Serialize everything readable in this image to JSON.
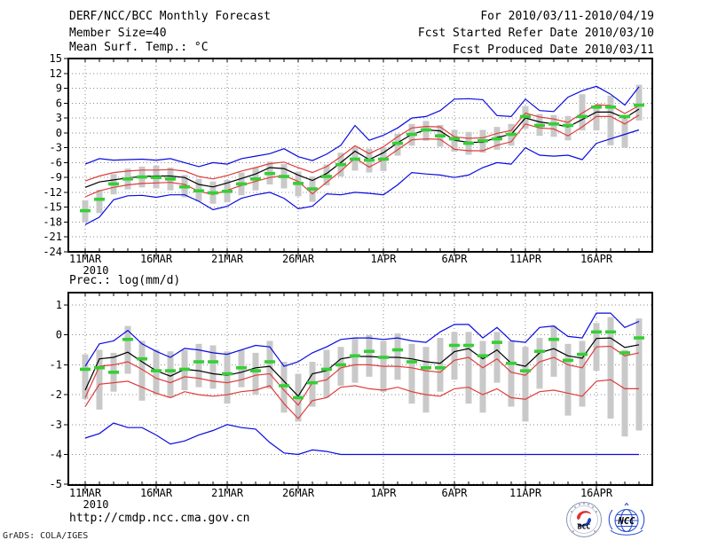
{
  "header": {
    "left_lines": [
      "DERF/NCC/BCC Monthly Forecast",
      "Member Size=40"
    ],
    "right_lines": [
      "For 2010/03/11-2010/04/19",
      "Fcst Started Refer Date 2010/03/10",
      "Fcst Produced Date 2010/03/11"
    ]
  },
  "footer": {
    "url": "http://cmdp.ncc.cma.gov.cn",
    "credit": "GrADS: COLA/IGES"
  },
  "logos": {
    "bcc_text": "BCC",
    "ncc_text": "NCC"
  },
  "colors": {
    "line_blue": "#0a0ae0",
    "line_red": "#e03c3c",
    "line_black": "#000000",
    "dash_green": "#35cf35",
    "bar_gray": "#c9c9c9",
    "grid_gray": "#8a8a8a",
    "frame": "#000000"
  },
  "chart_data": [
    {
      "type": "line",
      "title": "Mean Surf. Temp.: °C",
      "ylim": [
        -24,
        15
      ],
      "ytick_labels": [
        "15",
        "12",
        "9",
        "6",
        "3",
        "0",
        "-3",
        "-6",
        "-9",
        "-12",
        "-15",
        "-18",
        "-21",
        "-24"
      ],
      "x_start_date": "2010/03/11",
      "x_days": 40,
      "year_label": "2010",
      "xtick_labels": [
        {
          "day": 1,
          "label": "11MAR"
        },
        {
          "day": 6,
          "label": "16MAR"
        },
        {
          "day": 11,
          "label": "21MAR"
        },
        {
          "day": 16,
          "label": "26MAR"
        },
        {
          "day": 22,
          "label": "1APR"
        },
        {
          "day": 27,
          "label": "6APR"
        },
        {
          "day": 32,
          "label": "11APR"
        },
        {
          "day": 37,
          "label": "16APR"
        }
      ],
      "grid": "dotted",
      "series": [
        {
          "name": "ensemble-max",
          "color_key": "line_blue",
          "values": [
            -6.3,
            -5.2,
            -5.5,
            -5.4,
            -5.3,
            -5.5,
            -5.2,
            -6.0,
            -6.8,
            -6.0,
            -6.3,
            -5.2,
            -4.7,
            -4.2,
            -3.2,
            -4.8,
            -5.6,
            -4.3,
            -2.5,
            1.5,
            -1.5,
            -0.5,
            1.0,
            3.0,
            3.3,
            4.5,
            6.8,
            6.9,
            6.7,
            3.5,
            3.3,
            6.8,
            4.5,
            4.3,
            7.2,
            8.5,
            9.4,
            7.8,
            5.6,
            9.3
          ]
        },
        {
          "name": "ensemble-upper",
          "color_key": "line_red",
          "values": [
            -9.7,
            -8.7,
            -8.0,
            -7.7,
            -7.5,
            -7.5,
            -7.4,
            -7.7,
            -8.8,
            -9.3,
            -8.6,
            -7.7,
            -7.0,
            -6.2,
            -5.9,
            -7.0,
            -8.0,
            -6.8,
            -4.8,
            -2.6,
            -4.2,
            -2.8,
            -0.8,
            1.0,
            1.3,
            1.2,
            -0.8,
            -1.1,
            -1.0,
            -0.1,
            0.5,
            4.0,
            3.2,
            2.8,
            2.1,
            4.0,
            5.7,
            5.5,
            3.9,
            5.5
          ]
        },
        {
          "name": "ensemble-mean",
          "color_key": "line_black",
          "values": [
            -11.0,
            -9.9,
            -9.5,
            -9.1,
            -8.8,
            -8.7,
            -8.7,
            -9.0,
            -10.4,
            -10.9,
            -10.1,
            -9.2,
            -8.3,
            -7.0,
            -7.2,
            -8.5,
            -9.6,
            -8.2,
            -6.0,
            -3.7,
            -5.4,
            -4.0,
            -2.0,
            -0.3,
            0.6,
            0.4,
            -1.5,
            -1.9,
            -1.9,
            -0.9,
            -0.3,
            3.0,
            2.2,
            1.8,
            1.2,
            2.7,
            4.2,
            4.2,
            3.0,
            4.8
          ]
        },
        {
          "name": "ensemble-lower",
          "color_key": "line_red",
          "values": [
            -12.9,
            -11.7,
            -11.0,
            -10.5,
            -10.2,
            -10.1,
            -10.0,
            -10.4,
            -11.8,
            -12.4,
            -11.6,
            -10.6,
            -9.8,
            -9.0,
            -8.6,
            -9.8,
            -12.3,
            -10.0,
            -7.7,
            -5.1,
            -6.9,
            -5.4,
            -3.4,
            -1.4,
            -1.2,
            -1.3,
            -3.3,
            -3.6,
            -3.6,
            -2.5,
            -1.8,
            1.8,
            1.0,
            0.8,
            -0.6,
            1.2,
            3.3,
            3.3,
            1.8,
            3.6
          ]
        },
        {
          "name": "ensemble-min",
          "color_key": "line_blue",
          "values": [
            -18.5,
            -17.0,
            -13.5,
            -12.7,
            -12.6,
            -13.0,
            -12.5,
            -12.5,
            -13.8,
            -15.5,
            -14.8,
            -13.2,
            -12.5,
            -12.0,
            -13.2,
            -15.3,
            -14.8,
            -12.3,
            -12.5,
            -12.0,
            -12.2,
            -12.5,
            -10.5,
            -8.0,
            -8.3,
            -8.5,
            -9.0,
            -8.5,
            -7.0,
            -6.0,
            -6.3,
            -3.0,
            -4.5,
            -4.7,
            -4.5,
            -5.4,
            -2.1,
            -1.2,
            -0.3,
            0.6
          ]
        }
      ],
      "dashes": {
        "name": "observation-dash",
        "color_key": "dash_green",
        "values": [
          -15.7,
          -13.4,
          -10.3,
          -9.3,
          -8.9,
          -9.0,
          -9.3,
          -10.9,
          -11.7,
          -12.1,
          -11.8,
          -10.3,
          -9.3,
          -8.2,
          -8.8,
          -10.2,
          -11.3,
          -8.8,
          -6.4,
          -5.3,
          -5.5,
          -5.3,
          -2.1,
          -0.3,
          0.6,
          -0.6,
          -1.2,
          -2.1,
          -1.6,
          -1.2,
          -0.3,
          3.3,
          1.5,
          1.8,
          1.5,
          3.3,
          5.2,
          5.2,
          3.3,
          5.6
        ]
      },
      "bars": {
        "name": "ensemble-spread-bar",
        "color_key": "bar_gray",
        "top": [
          -13.6,
          -11.5,
          -8.3,
          -7.2,
          -6.8,
          -6.6,
          -7.0,
          -8.5,
          -9.3,
          -9.8,
          -9.5,
          -8.0,
          -7.0,
          -5.8,
          -6.3,
          -7.8,
          -8.8,
          -6.4,
          -4.0,
          -2.8,
          -3.2,
          -2.9,
          -0.2,
          1.8,
          2.4,
          1.6,
          0.6,
          0.2,
          0.6,
          1.2,
          1.8,
          5.4,
          3.8,
          3.6,
          3.4,
          7.8,
          5.4,
          7.5,
          3.5,
          9.7
        ],
        "bottom": [
          -17.9,
          -16.2,
          -12.4,
          -11.4,
          -11.0,
          -11.2,
          -11.6,
          -13.0,
          -13.8,
          -14.3,
          -14.0,
          -12.6,
          -11.6,
          -10.4,
          -11.2,
          -12.8,
          -13.9,
          -10.6,
          -8.8,
          -7.6,
          -8.0,
          -7.7,
          -4.6,
          -2.6,
          -1.6,
          -2.8,
          -3.8,
          -4.4,
          -4.0,
          -3.4,
          -2.6,
          0.8,
          -0.6,
          -0.8,
          -1.5,
          0.5,
          0.5,
          -2.5,
          -3.0,
          2.5
        ]
      }
    },
    {
      "type": "line",
      "title": "Prec.: log(mm/d)",
      "ylim": [
        -5,
        1
      ],
      "ytick_labels": [
        "1",
        "0",
        "-1",
        "-2",
        "-3",
        "-4",
        "-5"
      ],
      "x_start_date": "2010/03/11",
      "x_days": 40,
      "year_label": "2010",
      "xtick_labels": [
        {
          "day": 1,
          "label": "11MAR"
        },
        {
          "day": 6,
          "label": "16MAR"
        },
        {
          "day": 11,
          "label": "21MAR"
        },
        {
          "day": 16,
          "label": "26MAR"
        },
        {
          "day": 22,
          "label": "1APR"
        },
        {
          "day": 27,
          "label": "6APR"
        },
        {
          "day": 32,
          "label": "11APR"
        },
        {
          "day": 37,
          "label": "16APR"
        }
      ],
      "grid": "dotted",
      "series": [
        {
          "name": "ensemble-max",
          "color_key": "line_blue",
          "values": [
            -1.05,
            -0.3,
            -0.2,
            0.15,
            -0.3,
            -0.55,
            -0.75,
            -0.45,
            -0.5,
            -0.6,
            -0.65,
            -0.5,
            -0.35,
            -0.4,
            -1.05,
            -0.9,
            -0.6,
            -0.4,
            -0.15,
            -0.1,
            -0.1,
            -0.15,
            -0.1,
            -0.2,
            -0.25,
            0.1,
            0.35,
            0.35,
            -0.1,
            0.25,
            -0.2,
            -0.25,
            0.25,
            0.3,
            -0.05,
            -0.1,
            0.73,
            0.73,
            0.25,
            0.45
          ]
        },
        {
          "name": "ensemble-mean",
          "color_key": "line_black",
          "values": [
            -1.85,
            -0.8,
            -0.75,
            -0.58,
            -0.9,
            -1.2,
            -1.38,
            -1.15,
            -1.2,
            -1.3,
            -1.35,
            -1.25,
            -1.1,
            -1.05,
            -1.55,
            -2.05,
            -1.3,
            -1.2,
            -0.8,
            -0.72,
            -0.72,
            -0.75,
            -0.75,
            -0.8,
            -0.9,
            -0.95,
            -0.56,
            -0.46,
            -0.8,
            -0.5,
            -0.95,
            -1.05,
            -0.6,
            -0.46,
            -0.7,
            -0.78,
            -0.12,
            -0.1,
            -0.42,
            -0.33
          ]
        },
        {
          "name": "ensemble-upper",
          "color_key": "line_red",
          "values": [
            -2.1,
            -1.05,
            -1.0,
            -0.9,
            -1.15,
            -1.45,
            -1.6,
            -1.4,
            -1.45,
            -1.55,
            -1.6,
            -1.5,
            -1.35,
            -1.3,
            -1.85,
            -2.35,
            -1.6,
            -1.5,
            -1.1,
            -1.0,
            -1.0,
            -1.05,
            -1.05,
            -1.1,
            -1.2,
            -1.25,
            -0.85,
            -0.75,
            -1.1,
            -0.8,
            -1.25,
            -1.35,
            -0.9,
            -0.75,
            -1.0,
            -1.1,
            -0.4,
            -0.38,
            -0.7,
            -0.6
          ]
        },
        {
          "name": "ensemble-lower",
          "color_key": "line_red",
          "values": [
            -2.4,
            -1.65,
            -1.6,
            -1.55,
            -1.75,
            -1.95,
            -2.1,
            -1.9,
            -2.0,
            -2.05,
            -2.0,
            -1.9,
            -1.85,
            -1.7,
            -2.3,
            -2.8,
            -2.2,
            -2.1,
            -1.75,
            -1.7,
            -1.8,
            -1.85,
            -1.75,
            -1.9,
            -2.0,
            -2.05,
            -1.8,
            -1.75,
            -2.0,
            -1.8,
            -2.1,
            -2.15,
            -1.9,
            -1.85,
            -1.95,
            -2.05,
            -1.55,
            -1.5,
            -1.8,
            -1.8
          ]
        },
        {
          "name": "ensemble-min",
          "color_key": "line_blue",
          "values": [
            -3.45,
            -3.3,
            -2.95,
            -3.1,
            -3.1,
            -3.35,
            -3.65,
            -3.55,
            -3.35,
            -3.2,
            -3.0,
            -3.1,
            -3.15,
            -3.6,
            -3.95,
            -4.0,
            -3.85,
            -3.9,
            -4.0,
            -4.0,
            -4.0,
            -4.0,
            -4.0,
            -4.0,
            -4.0,
            -4.0,
            -4.0,
            -4.0,
            -4.0,
            -4.0,
            -4.0,
            -4.0,
            -4.0,
            -4.0,
            -4.0,
            -4.0,
            -4.0,
            -4.0,
            -4.0,
            -4.0
          ]
        }
      ],
      "dashes": {
        "name": "observation-dash",
        "color_key": "dash_green",
        "values": [
          -1.15,
          -1.1,
          -1.25,
          -0.15,
          -0.8,
          -1.2,
          -1.2,
          -1.15,
          -0.9,
          -0.9,
          -1.3,
          -1.1,
          -1.2,
          -0.9,
          -1.7,
          -2.1,
          -1.6,
          -1.15,
          -1.0,
          -0.7,
          -0.55,
          -0.75,
          -0.5,
          -0.9,
          -1.1,
          -1.1,
          -0.35,
          -0.35,
          -0.7,
          -0.25,
          -0.95,
          -1.2,
          -0.55,
          -0.15,
          -0.85,
          -0.65,
          0.1,
          0.1,
          -0.6,
          -0.1
        ]
      },
      "bars": {
        "name": "ensemble-spread-bar",
        "color_key": "bar_gray",
        "top": [
          -0.65,
          -0.5,
          -0.6,
          0.3,
          -0.2,
          -0.5,
          -0.55,
          -0.5,
          -0.3,
          -0.35,
          -0.55,
          -0.5,
          -0.6,
          -0.2,
          -0.9,
          -1.3,
          -0.9,
          -0.5,
          -0.4,
          -0.1,
          0.0,
          -0.2,
          0.05,
          -0.3,
          -0.4,
          -0.1,
          0.1,
          0.1,
          -0.2,
          0.1,
          -0.2,
          -0.4,
          -0.1,
          0.3,
          -0.3,
          -0.2,
          0.4,
          0.6,
          -0.5,
          0.55
        ],
        "bottom": [
          -2.15,
          -2.5,
          -1.9,
          -1.3,
          -2.2,
          -2.0,
          -2.1,
          -1.85,
          -1.75,
          -1.8,
          -2.3,
          -1.75,
          -2.0,
          -1.8,
          -2.6,
          -2.9,
          -2.4,
          -2.1,
          -1.7,
          -1.6,
          -1.4,
          -1.9,
          -1.5,
          -2.3,
          -2.6,
          -1.9,
          -1.5,
          -2.3,
          -2.6,
          -1.6,
          -2.4,
          -2.9,
          -1.8,
          -1.4,
          -2.7,
          -2.4,
          -1.2,
          -2.8,
          -3.4,
          -3.2
        ]
      }
    }
  ]
}
